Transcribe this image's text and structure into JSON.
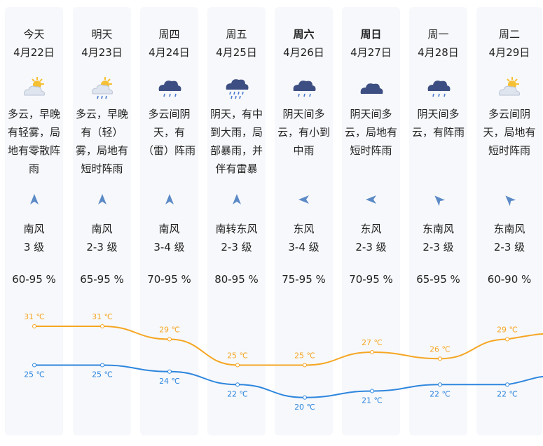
{
  "colors": {
    "high": "#f5a623",
    "low": "#2e86de",
    "wind_icon": "#5b8ac7",
    "cloud": "#3d4f82",
    "sun": "#f6c035",
    "rain": "#4a7bd0"
  },
  "days": [
    {
      "day": "今天",
      "date": "4月22日",
      "icon": "partly-cloudy-icon",
      "desc": "多云，早晚有轻雾，局地有零散阵雨",
      "wind_dir": "南风",
      "wind_level": "3 级",
      "wind_bearing": 0,
      "humidity": "60-95 %",
      "bold": false
    },
    {
      "day": "明天",
      "date": "4月23日",
      "icon": "partly-cloudy-rain-icon",
      "desc": "多云，早晚有（轻）雾，局地有短时阵雨",
      "wind_dir": "南风",
      "wind_level": "2-3 级",
      "wind_bearing": 0,
      "humidity": "65-95 %",
      "bold": false
    },
    {
      "day": "周四",
      "date": "4月24日",
      "icon": "thunder-rain-icon",
      "desc": "多云间阴天，有（雷）阵雨",
      "wind_dir": "南风",
      "wind_level": "3-4 级",
      "wind_bearing": 0,
      "humidity": "70-95 %",
      "bold": false
    },
    {
      "day": "周五",
      "date": "4月25日",
      "icon": "heavy-rain-icon",
      "desc": "阴天，有中到大雨，局部暴雨，并伴有雷暴",
      "wind_dir": "南转东风",
      "wind_level": "2-3 级",
      "wind_bearing": 0,
      "humidity": "80-95 %",
      "bold": false
    },
    {
      "day": "周六",
      "date": "4月26日",
      "icon": "rain-icon",
      "desc": "阴天间多云，有小到中雨",
      "wind_dir": "东风",
      "wind_level": "3-4 级",
      "wind_bearing": 270,
      "humidity": "75-95 %",
      "bold": true
    },
    {
      "day": "周日",
      "date": "4月27日",
      "icon": "cloudy-icon",
      "desc": "阴天间多云，局地有短时阵雨",
      "wind_dir": "东风",
      "wind_level": "2-3 级",
      "wind_bearing": 270,
      "humidity": "70-95 %",
      "bold": true
    },
    {
      "day": "周一",
      "date": "4月28日",
      "icon": "rain-icon",
      "desc": "阴天间多云，有阵雨",
      "wind_dir": "东南风",
      "wind_level": "2-3 级",
      "wind_bearing": 315,
      "humidity": "65-95 %",
      "bold": false
    },
    {
      "day": "周二",
      "date": "4月29日",
      "icon": "partly-cloudy-icon",
      "desc": "多云间阴天，局地有短时阵雨",
      "wind_dir": "东南风",
      "wind_level": "2-3 级",
      "wind_bearing": 315,
      "humidity": "60-90 %",
      "bold": false
    }
  ],
  "chart_data": {
    "type": "line",
    "categories": [
      "今天",
      "明天",
      "周四",
      "周五",
      "周六",
      "周日",
      "周一",
      "周二"
    ],
    "unit": "℃",
    "series": [
      {
        "values": [
          31,
          31,
          29,
          25,
          25,
          27,
          26,
          29
        ]
      },
      {
        "values": [
          25,
          25,
          24,
          22,
          20,
          21,
          22,
          22
        ]
      }
    ],
    "high_labels": [
      "31 ℃",
      "31 ℃",
      "29 ℃",
      "25 ℃",
      "25 ℃",
      "27 ℃",
      "26 ℃",
      "29 ℃"
    ],
    "low_labels": [
      "25 ℃",
      "25 ℃",
      "24 ℃",
      "22 ℃",
      "20 ℃",
      "21 ℃",
      "22 ℃",
      "22 ℃"
    ]
  }
}
